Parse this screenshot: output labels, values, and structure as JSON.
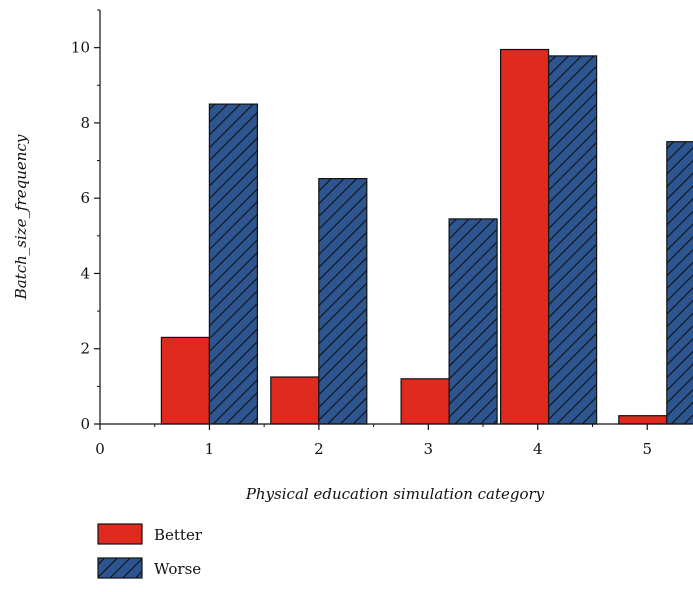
{
  "chart_data": {
    "type": "bar",
    "title": "",
    "xlabel": "Physical education simulation category",
    "ylabel": "Batch_size_frequency",
    "x_ticks": [
      "0",
      "1",
      "2",
      "3",
      "4",
      "5"
    ],
    "y_ticks": [
      "0",
      "2",
      "4",
      "6",
      "8",
      "10"
    ],
    "xlim": [
      0,
      5.4
    ],
    "ylim": [
      0,
      11
    ],
    "bar_centers": [
      1,
      2,
      3,
      4,
      5
    ],
    "grid": false,
    "legend_position": "bottom-left",
    "series": [
      {
        "name": "Better",
        "color": "#e02a1f",
        "pattern": "solid",
        "values": [
          2.3,
          1.25,
          1.2,
          9.95,
          0.22
        ],
        "x_centers": [
          0.78,
          1.78,
          2.97,
          3.88,
          4.96
        ]
      },
      {
        "name": "Worse",
        "color": "#2d5590",
        "pattern": "hatched",
        "values": [
          8.5,
          6.52,
          5.45,
          9.78,
          7.5
        ]
      }
    ]
  }
}
